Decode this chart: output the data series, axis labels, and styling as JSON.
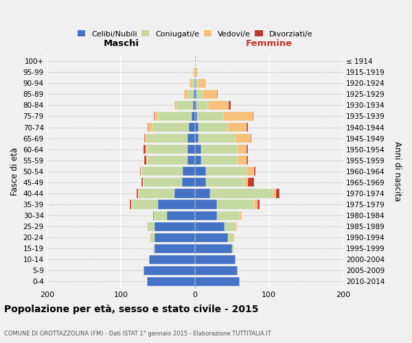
{
  "age_groups": [
    "0-4",
    "5-9",
    "10-14",
    "15-19",
    "20-24",
    "25-29",
    "30-34",
    "35-39",
    "40-44",
    "45-49",
    "50-54",
    "55-59",
    "60-64",
    "65-69",
    "70-74",
    "75-79",
    "80-84",
    "85-89",
    "90-94",
    "95-99",
    "100+"
  ],
  "birth_years": [
    "2010-2014",
    "2005-2009",
    "2000-2004",
    "1995-1999",
    "1990-1994",
    "1985-1989",
    "1980-1984",
    "1975-1979",
    "1970-1974",
    "1965-1969",
    "1960-1964",
    "1955-1959",
    "1950-1954",
    "1945-1949",
    "1940-1944",
    "1935-1939",
    "1930-1934",
    "1925-1929",
    "1920-1924",
    "1915-1919",
    "≤ 1914"
  ],
  "maschi": {
    "celibi": [
      65,
      70,
      62,
      55,
      55,
      55,
      38,
      50,
      28,
      18,
      17,
      10,
      10,
      10,
      8,
      5,
      3,
      2,
      1,
      0,
      0
    ],
    "coniugati": [
      0,
      0,
      0,
      2,
      5,
      10,
      18,
      35,
      48,
      52,
      55,
      55,
      55,
      55,
      50,
      45,
      22,
      8,
      3,
      1,
      0
    ],
    "vedovi": [
      0,
      0,
      0,
      0,
      1,
      0,
      0,
      1,
      1,
      1,
      1,
      1,
      2,
      3,
      5,
      5,
      3,
      5,
      3,
      2,
      0
    ],
    "divorziati": [
      0,
      0,
      0,
      0,
      0,
      0,
      1,
      2,
      2,
      1,
      1,
      3,
      3,
      1,
      1,
      1,
      0,
      0,
      0,
      0,
      0
    ]
  },
  "femmine": {
    "nubili": [
      60,
      58,
      55,
      50,
      45,
      40,
      30,
      30,
      20,
      15,
      15,
      8,
      8,
      5,
      5,
      3,
      2,
      2,
      1,
      0,
      0
    ],
    "coniugate": [
      0,
      0,
      0,
      3,
      8,
      15,
      30,
      50,
      85,
      52,
      55,
      50,
      50,
      50,
      40,
      35,
      16,
      8,
      4,
      1,
      0
    ],
    "vedove": [
      0,
      0,
      0,
      0,
      1,
      2,
      3,
      5,
      5,
      5,
      10,
      12,
      12,
      20,
      25,
      40,
      28,
      20,
      10,
      3,
      0
    ],
    "divorziate": [
      0,
      0,
      0,
      0,
      0,
      0,
      0,
      2,
      4,
      8,
      2,
      2,
      2,
      1,
      2,
      1,
      2,
      1,
      0,
      0,
      0
    ]
  },
  "colors": {
    "celibi_nubili": "#4472C4",
    "coniugati": "#c5d9a0",
    "vedovi": "#f5c07a",
    "divorziati": "#c0392b"
  },
  "title": "Popolazione per età, sesso e stato civile - 2015",
  "subtitle": "COMUNE DI GROTTAZZOLINA (FM) - Dati ISTAT 1° gennaio 2015 - Elaborazione TUTTITALIA.IT",
  "xlabel_left": "Maschi",
  "xlabel_right": "Femmine",
  "ylabel_left": "Fasce di età",
  "ylabel_right": "Anni di nascita",
  "xlim": 200,
  "background_color": "#f0f0f0",
  "legend_labels": [
    "Celibi/Nubili",
    "Coniugati/e",
    "Vedovi/e",
    "Divorziati/e"
  ]
}
